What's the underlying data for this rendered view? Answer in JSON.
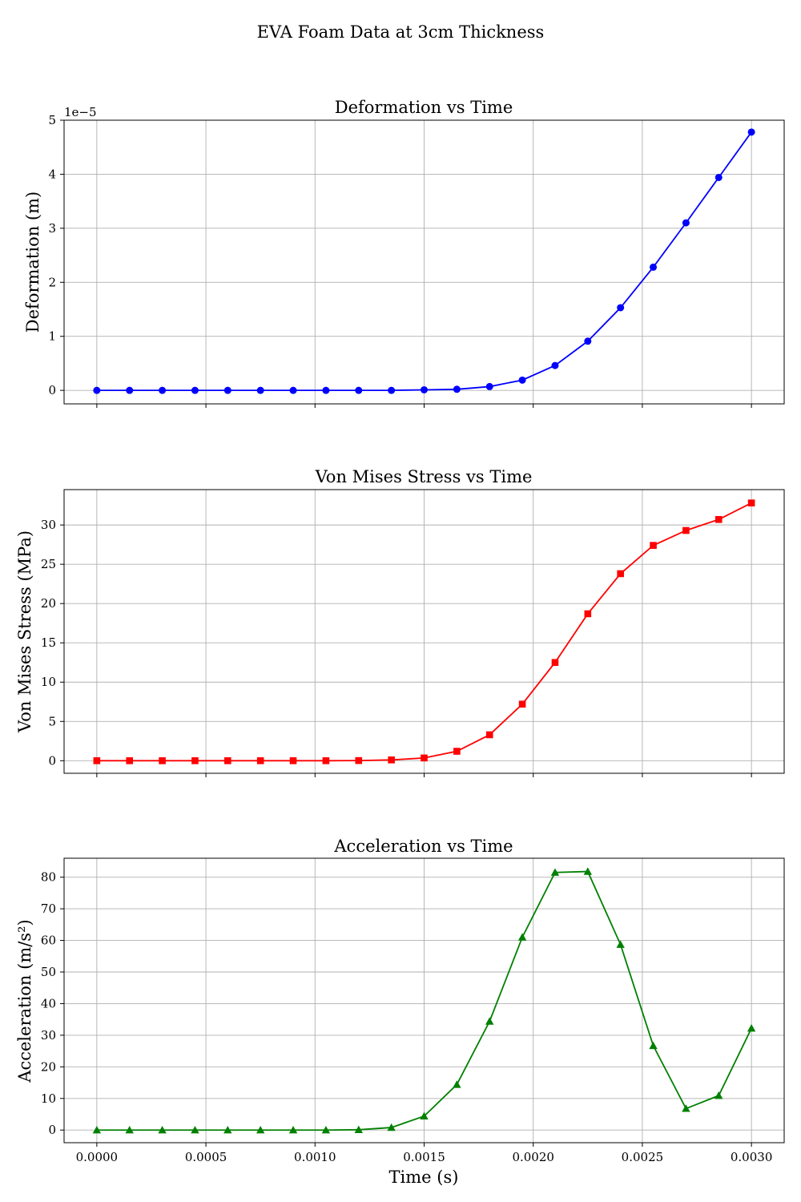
{
  "figure": {
    "title": "EVA Foam Data at 3cm Thickness"
  },
  "chart_data": [
    {
      "type": "line",
      "title": "Deformation vs Time",
      "xlabel": "",
      "ylabel": "Deformation (m)",
      "offset_label": "1e−5",
      "color": "#0000ff",
      "marker": "circle",
      "grid": true,
      "xlim": [
        -0.00015,
        0.00315
      ],
      "ylim": [
        -0.25,
        5.0
      ],
      "xticks": [
        0.0,
        0.0005,
        0.001,
        0.0015,
        0.002,
        0.0025,
        0.003
      ],
      "xtick_labels": [
        "",
        "",
        "",
        "",
        "",
        "",
        ""
      ],
      "yticks": [
        0,
        1,
        2,
        3,
        4,
        5
      ],
      "ytick_labels": [
        "0",
        "1",
        "2",
        "3",
        "4",
        "5"
      ],
      "x": [
        0,
        0.00015,
        0.0003,
        0.00045,
        0.0006,
        0.00075,
        0.0009,
        0.00105,
        0.0012,
        0.00135,
        0.0015,
        0.00165,
        0.0018,
        0.00195,
        0.0021,
        0.00225,
        0.0024,
        0.00255,
        0.0027,
        0.00285,
        0.003
      ],
      "values": [
        0,
        0,
        0,
        0,
        0,
        0,
        0,
        0,
        0,
        0,
        0.01,
        0.02,
        0.07,
        0.19,
        0.46,
        0.91,
        1.53,
        2.28,
        3.1,
        3.94,
        4.78
      ]
    },
    {
      "type": "line",
      "title": "Von Mises Stress vs Time",
      "xlabel": "",
      "ylabel": "Von Mises Stress (MPa)",
      "color": "#ff0000",
      "marker": "square",
      "grid": true,
      "xlim": [
        -0.00015,
        0.00315
      ],
      "ylim": [
        -1.6,
        34.5
      ],
      "xticks": [
        0.0,
        0.0005,
        0.001,
        0.0015,
        0.002,
        0.0025,
        0.003
      ],
      "xtick_labels": [
        "",
        "",
        "",
        "",
        "",
        "",
        ""
      ],
      "yticks": [
        0,
        5,
        10,
        15,
        20,
        25,
        30
      ],
      "ytick_labels": [
        "0",
        "5",
        "10",
        "15",
        "20",
        "25",
        "30"
      ],
      "x": [
        0,
        0.00015,
        0.0003,
        0.00045,
        0.0006,
        0.00075,
        0.0009,
        0.00105,
        0.0012,
        0.00135,
        0.0015,
        0.00165,
        0.0018,
        0.00195,
        0.0021,
        0.00225,
        0.0024,
        0.00255,
        0.0027,
        0.00285,
        0.003
      ],
      "values": [
        0,
        0,
        0,
        0,
        0,
        0,
        0,
        0,
        0.02,
        0.1,
        0.35,
        1.2,
        3.3,
        7.2,
        12.5,
        18.7,
        23.8,
        27.4,
        29.3,
        30.7,
        32.8
      ]
    },
    {
      "type": "line",
      "title": "Acceleration vs Time",
      "xlabel": "Time (s)",
      "ylabel": "Acceleration (m/s²)",
      "color": "#008000",
      "marker": "triangle",
      "grid": true,
      "xlim": [
        -0.00015,
        0.00315
      ],
      "ylim": [
        -4.0,
        86.0
      ],
      "xticks": [
        0.0,
        0.0005,
        0.001,
        0.0015,
        0.002,
        0.0025,
        0.003
      ],
      "xtick_labels": [
        "0.0000",
        "0.0005",
        "0.0010",
        "0.0015",
        "0.0020",
        "0.0025",
        "0.0030"
      ],
      "yticks": [
        0,
        10,
        20,
        30,
        40,
        50,
        60,
        70,
        80
      ],
      "ytick_labels": [
        "0",
        "10",
        "20",
        "30",
        "40",
        "50",
        "60",
        "70",
        "80"
      ],
      "x": [
        0,
        0.00015,
        0.0003,
        0.00045,
        0.0006,
        0.00075,
        0.0009,
        0.00105,
        0.0012,
        0.00135,
        0.0015,
        0.00165,
        0.0018,
        0.00195,
        0.0021,
        0.00225,
        0.0024,
        0.00255,
        0.0027,
        0.00285,
        0.003
      ],
      "values": [
        0,
        0,
        0,
        0,
        0,
        0,
        0,
        0,
        0.1,
        0.8,
        4.4,
        14.4,
        34.4,
        61.0,
        81.5,
        81.8,
        58.7,
        26.7,
        6.8,
        10.9,
        32.2
      ]
    }
  ]
}
